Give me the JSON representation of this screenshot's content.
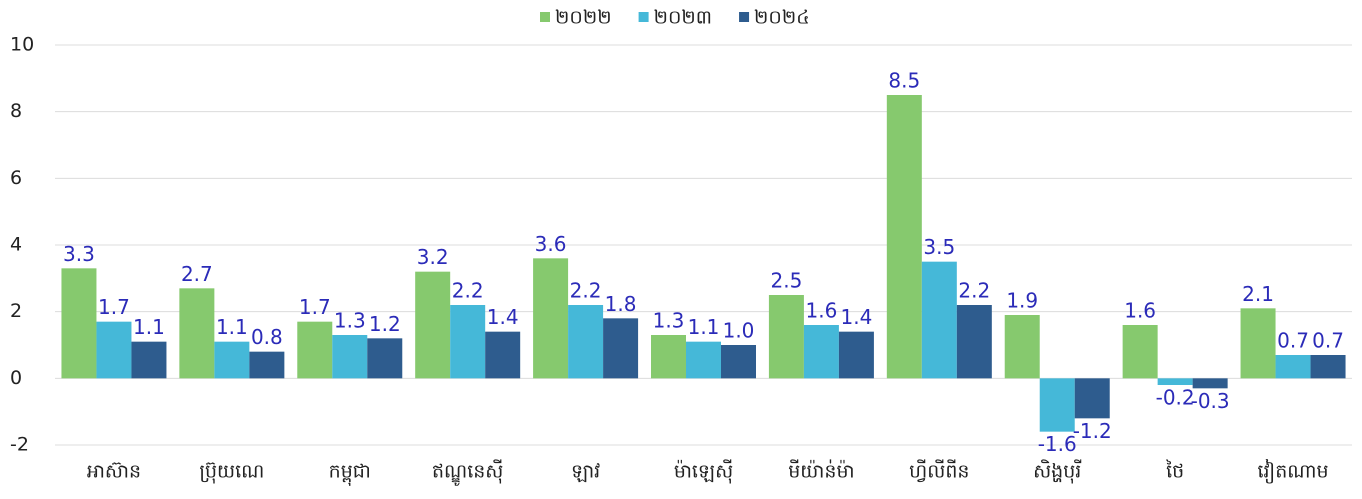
{
  "chart_data": {
    "type": "bar",
    "categories": [
      "អាស៊ាន",
      "ប្រ៊ុយណេ",
      "កម្ពុជា",
      "ឥណ្ឌូនេស៊ី",
      "ឡាវ",
      "ម៉ាឡេស៊ី",
      "មីយ៉ាន់ម៉ា",
      "ហ្វីលីពីន",
      "សិង្ហបុរី",
      "ថៃ",
      "វៀតណាម"
    ],
    "series": [
      {
        "name": "២០២២",
        "color": "#86c96e",
        "values": [
          3.3,
          2.7,
          1.7,
          3.2,
          3.6,
          1.3,
          2.5,
          8.5,
          1.9,
          1.6,
          2.1
        ],
        "value_labels": [
          "3.3",
          "2.7",
          "1.7",
          "3.2",
          "3.6",
          "1.3",
          "2.5",
          "8.5",
          "1.9",
          "1.6",
          "2.1"
        ]
      },
      {
        "name": "២០២៣",
        "color": "#45b8d8",
        "values": [
          1.7,
          1.1,
          1.3,
          2.2,
          2.2,
          1.1,
          1.6,
          3.5,
          -1.6,
          -0.2,
          0.7
        ],
        "value_labels": [
          "1.7",
          "1.1",
          "1.3",
          "2.2",
          "2.2",
          "1.1",
          "1.6",
          "3.5",
          "-1.6",
          "-0.2",
          "0.7"
        ]
      },
      {
        "name": "២០២៤",
        "color": "#2e5c8e",
        "values": [
          1.1,
          0.8,
          1.2,
          1.4,
          1.8,
          1.0,
          1.4,
          2.2,
          -1.2,
          -0.3,
          0.7
        ],
        "value_labels": [
          "1.1",
          "0.8",
          "1.2",
          "1.4",
          "1.8",
          "1.0",
          "1.4",
          "2.2",
          "-1.2",
          "-0.3",
          "0.7"
        ]
      }
    ],
    "ylim": [
      -2,
      10
    ],
    "yticks": [
      -2,
      0,
      2,
      4,
      6,
      8,
      10
    ],
    "grid": true,
    "legend": "top"
  }
}
